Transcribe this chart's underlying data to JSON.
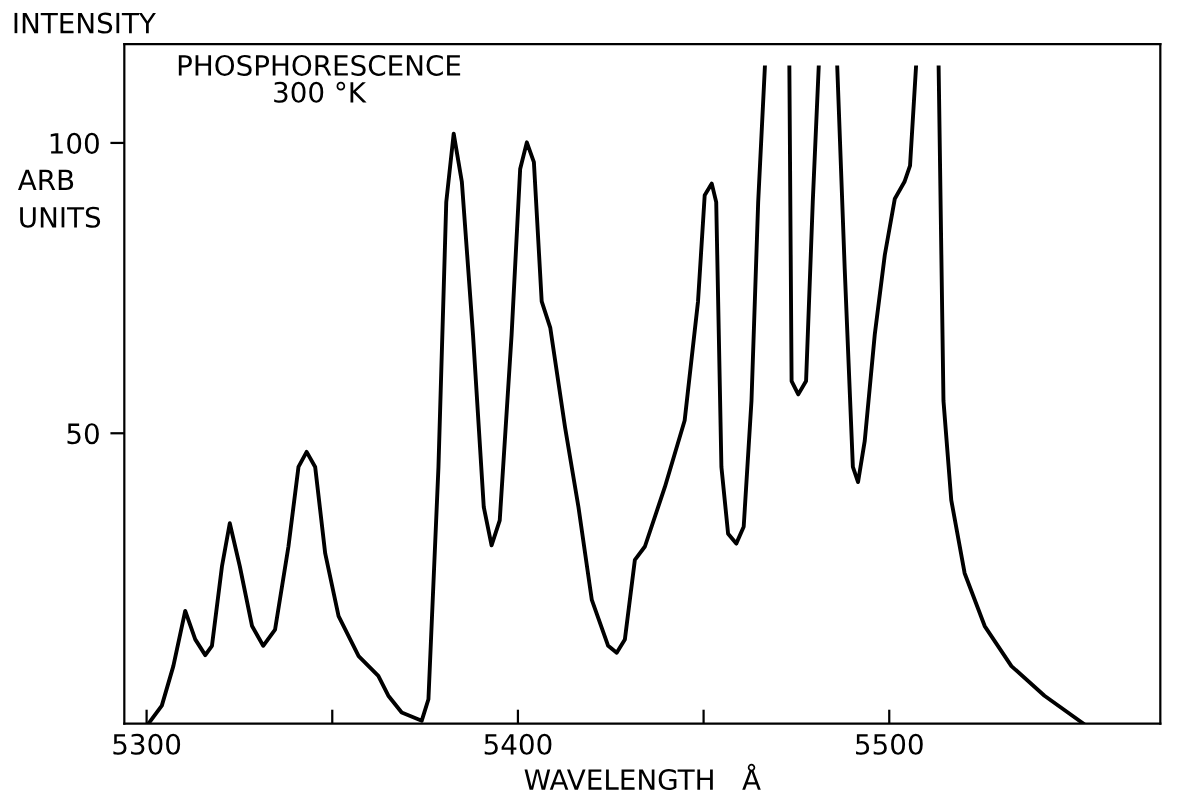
{
  "chart_data": {
    "type": "line",
    "title": "PHOSPHORESCENCE\n300 °K",
    "xlabel": "WAVELENGTH   Å",
    "ylabel": "INTENSITY",
    "annotations": [
      "ARB\nUNITS"
    ],
    "xlim": [
      5294,
      5573
    ],
    "ylim": [
      0,
      117
    ],
    "xticks": [
      5300,
      {
        "value": 5350,
        "label": null
      },
      5400,
      {
        "value": 5450,
        "label": null
      },
      5500
    ],
    "yticks": [
      50,
      100
    ],
    "grid": false,
    "legend": false,
    "marker": "none",
    "line_style": "solid",
    "series": [
      {
        "color": "#000000",
        "x": [
          5300.5,
          5304.1,
          5307.2,
          5310.4,
          5313.1,
          5315.8,
          5317.6,
          5320.3,
          5322.4,
          5325.1,
          5328.4,
          5331.4,
          5334.6,
          5338.2,
          5340.9,
          5343.1,
          5345.4,
          5348.1,
          5351.7,
          5357.1,
          5362.4,
          5365.1,
          5368.7,
          5374.1,
          5375.9,
          5378.6,
          5380.7,
          5382.7,
          5384.9,
          5387.9,
          5390.8,
          5392.9,
          5395.1,
          5398.3,
          5400.6,
          5402.4,
          5404.3,
          5406.4,
          5408.7,
          5412.7,
          5416.3,
          5419.9,
          5424.3,
          5426.6,
          5428.8,
          5431.5,
          5434.2,
          5439.6,
          5444.9,
          5448.5,
          5450.3,
          5452.2,
          5453.4,
          5454.8,
          5456.6,
          5458.8,
          5460.8,
          5462.9,
          5464.7,
          5466.5,
          5470.0,
          5473.1,
          5473.7,
          5475.5,
          5477.6,
          5479.4,
          5481.0,
          5483.5,
          5486.0,
          5488.0,
          5490.2,
          5491.6,
          5493.4,
          5496.1,
          5498.8,
          5501.5,
          5504.1,
          5505.6,
          5507.2,
          5510.0,
          5513.3,
          5514.6,
          5516.7,
          5520.3,
          5525.7,
          5532.9,
          5541.8,
          5552.3
        ],
        "values": [
          0,
          3.1,
          9.9,
          19.4,
          14.5,
          11.8,
          13.4,
          27.1,
          34.5,
          27.1,
          16.8,
          13.4,
          16.2,
          30.5,
          44.2,
          46.8,
          44.2,
          29.3,
          18.5,
          11.6,
          8.2,
          4.8,
          1.9,
          0.5,
          4.2,
          44.2,
          89.8,
          101.6,
          93.3,
          67.0,
          37.3,
          30.7,
          35.0,
          67.0,
          95.5,
          100.1,
          96.7,
          72.7,
          68.2,
          51.0,
          37.3,
          21.3,
          13.4,
          12.2,
          14.5,
          28.2,
          30.5,
          40.8,
          52.2,
          72.7,
          91.0,
          93.0,
          89.8,
          44.2,
          32.7,
          31.0,
          33.9,
          55.6,
          89.8,
          113,
          null,
          113,
          59.0,
          56.7,
          59.0,
          89.8,
          113,
          null,
          113,
          78.4,
          44.2,
          41.6,
          48.7,
          67.0,
          80.7,
          90.4,
          93.3,
          96.1,
          113,
          null,
          113,
          55.6,
          38.5,
          25.9,
          16.8,
          9.9,
          4.8,
          0
        ]
      }
    ]
  }
}
